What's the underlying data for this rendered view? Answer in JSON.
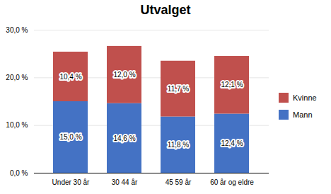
{
  "chart_data": {
    "type": "bar",
    "title": "Utvalget",
    "categories": [
      "Under 30 år",
      "30 44 år",
      "45 59 år",
      "60 år og eldre"
    ],
    "stacked": true,
    "series": [
      {
        "name": "Mann",
        "color": "#4472C4",
        "values": [
          15.0,
          14.6,
          11.8,
          12.4
        ],
        "value_labels": [
          "15,0 %",
          "14,6 %",
          "11,8 %",
          "12,4 %"
        ]
      },
      {
        "name": "Kvinne",
        "color": "#C0504D",
        "values": [
          10.4,
          12.0,
          11.7,
          12.1
        ],
        "value_labels": [
          "10,4 %",
          "12,0 %",
          "11,7 %",
          "12,1 %"
        ]
      }
    ],
    "ylim": [
      0,
      30
    ],
    "yticks": [
      {
        "value": 0,
        "label": "0,0 %"
      },
      {
        "value": 10,
        "label": "10,0 %"
      },
      {
        "value": 20,
        "label": "20,0 %"
      },
      {
        "value": 30,
        "label": "30,0 %"
      }
    ],
    "grid": true,
    "legend": "right",
    "data_labels": true
  }
}
